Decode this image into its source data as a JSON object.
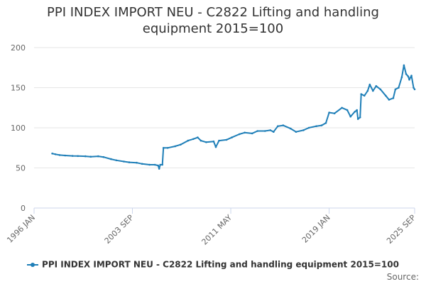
{
  "page": {
    "title": "PPI INDEX IMPORT NEU - C2822 Lifting and handling equipment 2015=100"
  },
  "legend": {
    "label": "PPI INDEX IMPORT NEU - C2822 Lifting and handling equipment 2015=100"
  },
  "footer": {
    "source_label": "Source:"
  },
  "colors": {
    "series": "#1f7fb8",
    "grid": "#e6e6e6",
    "axis": "#ccd6eb"
  },
  "chart_data": {
    "type": "line",
    "title": "PPI INDEX IMPORT NEU - C2822 Lifting and handling equipment 2015=100",
    "xlabel": "",
    "ylabel": "",
    "ylim": [
      0,
      200
    ],
    "yticks": [
      0,
      50,
      100,
      150,
      200
    ],
    "xlim": [
      "1996-01",
      "2025-09"
    ],
    "xtick_labels": [
      "1996 JAN",
      "2003 SEP",
      "2011 MAY",
      "2019 JAN",
      "2025 SEP"
    ],
    "xtick_dates": [
      "1996-01",
      "2003-09",
      "2011-05",
      "2019-01",
      "2025-09"
    ],
    "grid": true,
    "legend_position": "bottom",
    "series": [
      {
        "name": "PPI INDEX IMPORT NEU - C2822 Lifting and handling equipment 2015=100",
        "points": [
          [
            "1997-06",
            68
          ],
          [
            "1997-09",
            67
          ],
          [
            "1998-01",
            66
          ],
          [
            "1998-06",
            65.5
          ],
          [
            "1999-01",
            65
          ],
          [
            "1999-06",
            64.8
          ],
          [
            "2000-01",
            64.5
          ],
          [
            "2000-06",
            64
          ],
          [
            "2001-01",
            64.5
          ],
          [
            "2001-06",
            63.5
          ],
          [
            "2002-01",
            61
          ],
          [
            "2002-06",
            59.5
          ],
          [
            "2003-01",
            58
          ],
          [
            "2003-06",
            57
          ],
          [
            "2004-01",
            56.5
          ],
          [
            "2004-06",
            55
          ],
          [
            "2005-01",
            54
          ],
          [
            "2005-06",
            54
          ],
          [
            "2005-09",
            53
          ],
          [
            "2005-10",
            49
          ],
          [
            "2005-11",
            54
          ],
          [
            "2006-01",
            54
          ],
          [
            "2006-02",
            75
          ],
          [
            "2006-06",
            75
          ],
          [
            "2007-01",
            77
          ],
          [
            "2007-06",
            79
          ],
          [
            "2008-01",
            84
          ],
          [
            "2008-06",
            86
          ],
          [
            "2008-10",
            88
          ],
          [
            "2009-01",
            84
          ],
          [
            "2009-06",
            82
          ],
          [
            "2010-01",
            83
          ],
          [
            "2010-03",
            76
          ],
          [
            "2010-06",
            84
          ],
          [
            "2011-01",
            85
          ],
          [
            "2011-06",
            88
          ],
          [
            "2012-01",
            92
          ],
          [
            "2012-06",
            94
          ],
          [
            "2013-01",
            93
          ],
          [
            "2013-06",
            96
          ],
          [
            "2014-01",
            96
          ],
          [
            "2014-06",
            97
          ],
          [
            "2014-09",
            95
          ],
          [
            "2015-01",
            102
          ],
          [
            "2015-06",
            103
          ],
          [
            "2016-01",
            99
          ],
          [
            "2016-06",
            95
          ],
          [
            "2017-01",
            97
          ],
          [
            "2017-06",
            100
          ],
          [
            "2018-01",
            102
          ],
          [
            "2018-06",
            103
          ],
          [
            "2018-10",
            106
          ],
          [
            "2019-01",
            119
          ],
          [
            "2019-06",
            118
          ],
          [
            "2020-01",
            125
          ],
          [
            "2020-06",
            122
          ],
          [
            "2020-09",
            114
          ],
          [
            "2021-01",
            120
          ],
          [
            "2021-03",
            122
          ],
          [
            "2021-04",
            111
          ],
          [
            "2021-06",
            113
          ],
          [
            "2021-07",
            142
          ],
          [
            "2021-10",
            140
          ],
          [
            "2022-01",
            146
          ],
          [
            "2022-03",
            154
          ],
          [
            "2022-06",
            146
          ],
          [
            "2022-09",
            152
          ],
          [
            "2023-01",
            148
          ],
          [
            "2023-06",
            140
          ],
          [
            "2023-09",
            135
          ],
          [
            "2024-01",
            137
          ],
          [
            "2024-03",
            148
          ],
          [
            "2024-06",
            150
          ],
          [
            "2024-09",
            163
          ],
          [
            "2024-11",
            178
          ],
          [
            "2025-01",
            167
          ],
          [
            "2025-03",
            164
          ],
          [
            "2025-04",
            160
          ],
          [
            "2025-06",
            165
          ],
          [
            "2025-08",
            150
          ],
          [
            "2025-09",
            148
          ]
        ]
      }
    ]
  }
}
